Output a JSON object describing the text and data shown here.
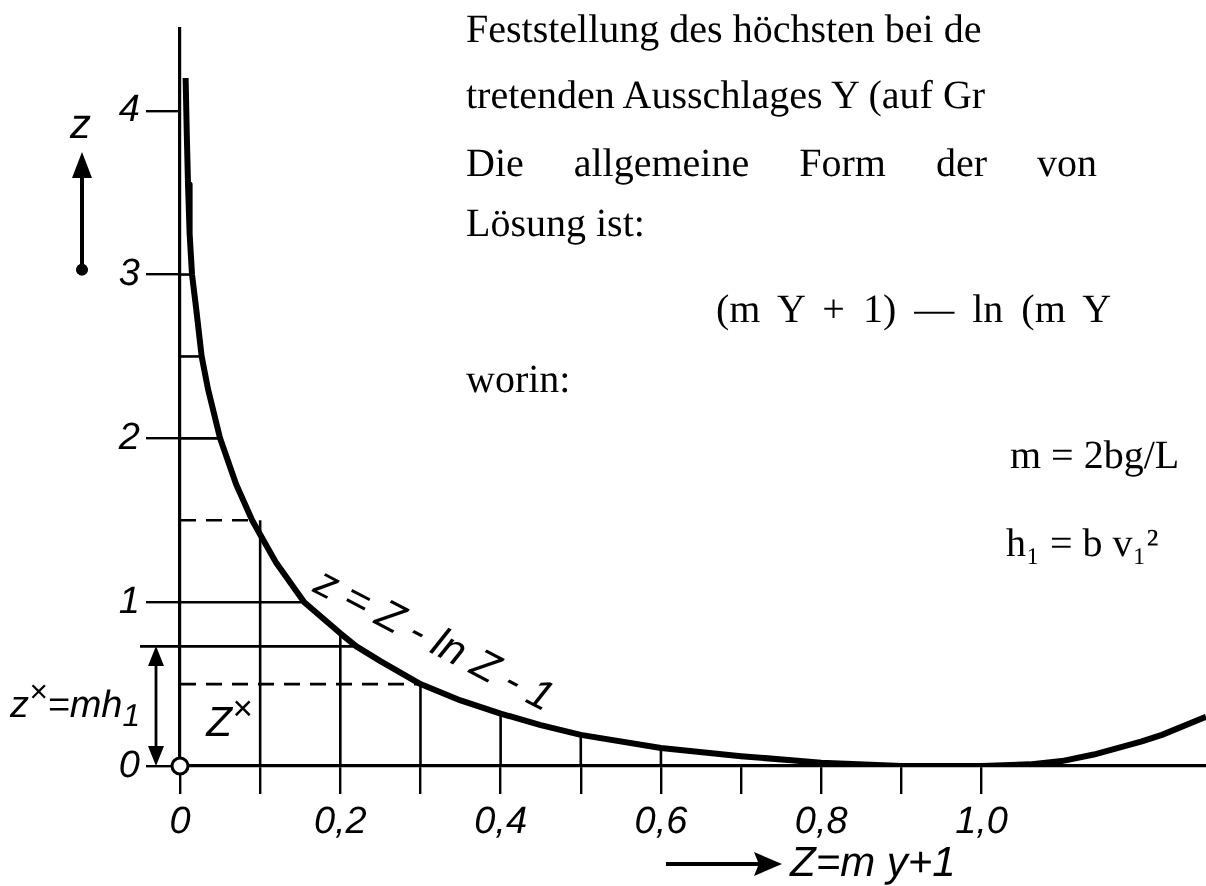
{
  "chart_data": {
    "type": "line",
    "xlabel": "Z=m y+1",
    "ylabel": "z",
    "series": [
      {
        "name": "z = Z - ln Z - 1",
        "color": "#000000",
        "x": [
          0.007,
          0.0085,
          0.01,
          0.012,
          0.015,
          0.02,
          0.027,
          0.035,
          0.05,
          0.07,
          0.09,
          0.12,
          0.155,
          0.2,
          0.22,
          0.25,
          0.3,
          0.35,
          0.4,
          0.45,
          0.5,
          0.6,
          0.7,
          0.8,
          0.9,
          1.0,
          1.06,
          1.1,
          1.14,
          1.2,
          1.225,
          1.28
        ],
        "values": [
          4.2,
          3.85,
          3.55,
          3.25,
          3.0,
          2.8,
          2.5,
          2.3,
          2.0,
          1.72,
          1.5,
          1.24,
          1.0,
          0.81,
          0.73,
          0.64,
          0.5,
          0.4,
          0.32,
          0.25,
          0.19,
          0.11,
          0.06,
          0.02,
          0,
          0,
          0.01,
          0.03,
          0.07,
          0.15,
          0.19,
          0.3
        ]
      },
      {
        "color": "#000000",
        "x": [
          0,
          0.3
        ],
        "values": [
          0.5,
          0.5
        ],
        "line_style": "dashed"
      },
      {
        "color": "#000000",
        "x": [
          0,
          0.155
        ],
        "values": [
          1,
          1
        ]
      },
      {
        "color": "#000000",
        "x": [
          0,
          0.09
        ],
        "values": [
          1.5,
          1.5
        ],
        "line_style": "dashed"
      },
      {
        "color": "#000000",
        "x": [
          0,
          0.05
        ],
        "values": [
          2,
          2
        ]
      },
      {
        "color": "#000000",
        "x": [
          0,
          0.027
        ],
        "values": [
          2.5,
          2.5
        ]
      },
      {
        "color": "#000000",
        "x": [
          0,
          0.015
        ],
        "values": [
          3,
          3
        ]
      },
      {
        "color": "#000000",
        "x": [
          0.1,
          0.1
        ],
        "values": [
          0,
          1.5
        ]
      },
      {
        "color": "#000000",
        "x": [
          0.2,
          0.2
        ],
        "values": [
          0,
          0.81
        ]
      },
      {
        "color": "#000000",
        "x": [
          0.3,
          0.3
        ],
        "values": [
          0,
          0.5
        ]
      },
      {
        "color": "#000000",
        "x": [
          0.4,
          0.4
        ],
        "values": [
          0,
          0.32
        ]
      },
      {
        "color": "#000000",
        "x": [
          0.5,
          0.5
        ],
        "values": [
          0,
          0.19
        ]
      },
      {
        "color": "#000000",
        "x": [
          0.6,
          0.6
        ],
        "values": [
          0,
          0.11
        ]
      }
    ],
    "xlim": [
      0,
      1.28
    ],
    "ylim": [
      0,
      4.5
    ],
    "xticks": [
      0,
      {
        "value": 0.1,
        "label": null
      },
      {
        "value": 0.2,
        "label": "0,2"
      },
      {
        "value": 0.3,
        "label": null
      },
      {
        "value": 0.4,
        "label": "0,4"
      },
      {
        "value": 0.5,
        "label": null
      },
      {
        "value": 0.6,
        "label": "0,6"
      },
      {
        "value": 0.7,
        "label": null
      },
      {
        "value": 0.8,
        "label": "0,8"
      },
      {
        "value": 0.9,
        "label": null
      },
      {
        "value": 1,
        "label": "1,0"
      }
    ],
    "yticks": [
      0,
      1,
      2,
      3,
      4
    ],
    "legend": false,
    "marker": "none",
    "ref_lines": [
      {
        "axis": "y",
        "value": 0.73,
        "label": "z$^{×}$=mh$_{1}$",
        "line_style": "solid"
      }
    ],
    "annotations": [
      "Feststellung des höchsten bei de",
      "tretenden Ausschlages Y (auf Gr",
      "Die allgemeine Form der von",
      "Lösung ist:",
      "(m Y + 1) — ln (m Y",
      "worin:",
      "m = 2bg/L",
      "h₁ = b v₁²",
      {
        "text": "Z$^{×}$",
        "x": 0.22,
        "y": 0.73
      }
    ]
  }
}
